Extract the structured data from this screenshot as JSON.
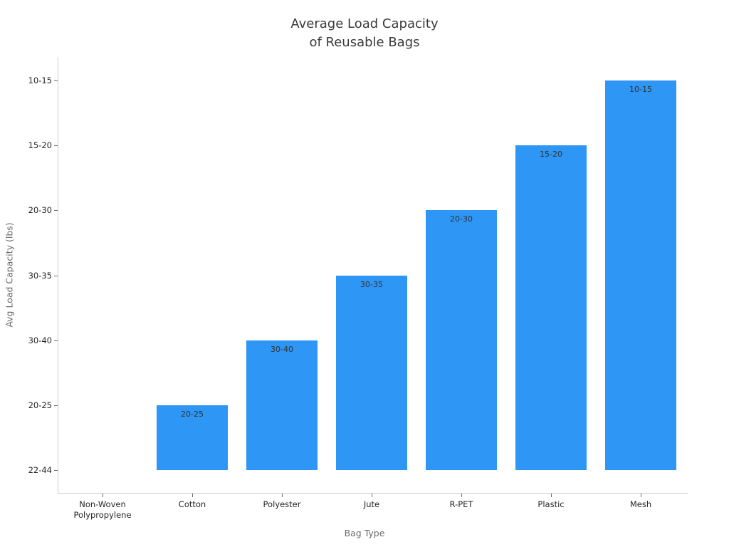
{
  "chart_data": {
    "type": "bar",
    "orientation": "vertical",
    "title": "Average Load Capacity of Reusable Bags",
    "title_lines": [
      "Average Load Capacity",
      "of Reusable Bags"
    ],
    "xlabel": "Bag Type",
    "ylabel": "Avg Load Capacity (lbs)",
    "categories": [
      "Non-Woven\nPolypropylene",
      "Cotton",
      "Polyester",
      "Jute",
      "R-PET",
      "Plastic",
      "Mesh"
    ],
    "capacity_ranges_lbs": [
      "22-44",
      "20-25",
      "30-40",
      "30-35",
      "20-30",
      "15-20",
      "10-15"
    ],
    "ordinal_values": [
      0,
      1,
      2,
      3,
      4,
      5,
      6
    ],
    "bar_labels": [
      "",
      "20-25",
      "30-40",
      "30-35",
      "20-30",
      "15-20",
      "10-15"
    ],
    "y_axis": {
      "kind": "categorical",
      "ticks_bottom_to_top": [
        "22-44",
        "20-25",
        "30-40",
        "30-35",
        "20-30",
        "15-20",
        "10-15"
      ]
    },
    "grid": false,
    "legend": false,
    "bar_color": "#2E96F5"
  }
}
